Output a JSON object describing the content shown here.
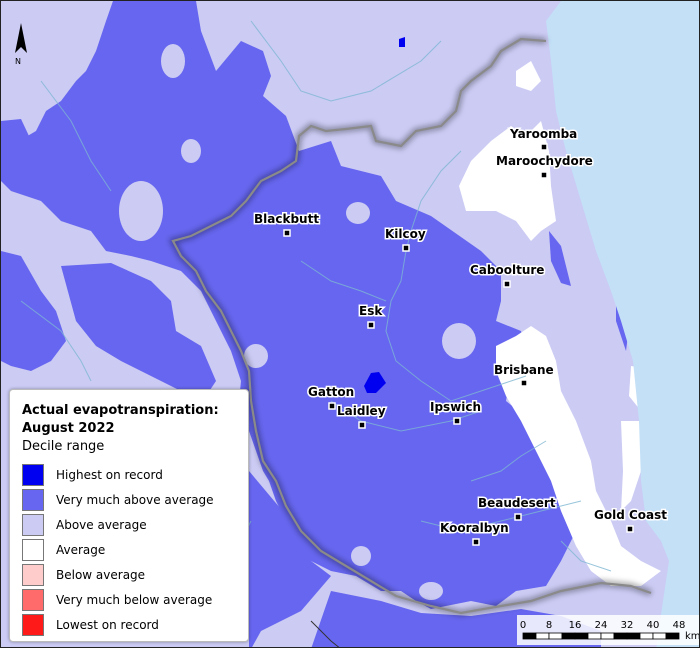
{
  "legend": {
    "title": "Actual evapotranspiration: August 2022",
    "subtitle": "Decile range",
    "items": [
      {
        "label": "Highest on record",
        "color": "#0000f0"
      },
      {
        "label": "Very much above average",
        "color": "#6666f0"
      },
      {
        "label": "Above average",
        "color": "#cbcbf4"
      },
      {
        "label": "Average",
        "color": "#ffffff"
      },
      {
        "label": "Below average",
        "color": "#ffcccc"
      },
      {
        "label": "Very much below average",
        "color": "#ff6b6b"
      },
      {
        "label": "Lowest on record",
        "color": "#ff1a1a"
      }
    ]
  },
  "towns": [
    "Yaroomba",
    "Maroochydore",
    "Blackbutt",
    "Kilcoy",
    "Caboolture",
    "Esk",
    "Brisbane",
    "Gatton",
    "Laidley",
    "Ipswich",
    "Beaudesert",
    "Kooralbyn",
    "Gold Coast"
  ],
  "north_arrow": {
    "label": "N"
  },
  "scale_bar": {
    "ticks": [
      "0",
      "8",
      "16",
      "24",
      "32",
      "40",
      "48"
    ],
    "unit": "km"
  },
  "colors": {
    "ocean": "#c3e0f7",
    "rivers": "#7eb6d2",
    "boundary": "#888888"
  }
}
